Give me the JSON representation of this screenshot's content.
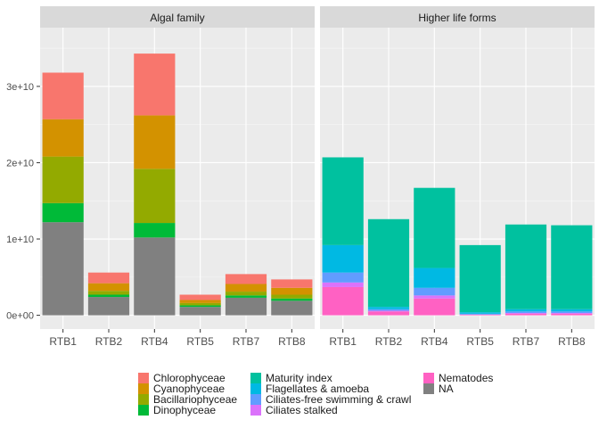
{
  "chart_data": {
    "type": "bar",
    "stacked": true,
    "facets": [
      "Algal family",
      "Higher life forms"
    ],
    "categories": [
      "RTB1",
      "RTB2",
      "RTB4",
      "RTB5",
      "RTB7",
      "RTB8"
    ],
    "y_tick_labels": [
      "0e+00",
      "1e+10",
      "2e+10",
      "3e+10"
    ],
    "y_ticks": [
      0,
      10000000000,
      20000000000,
      30000000000
    ],
    "ylim": [
      -1800000000,
      37700000000
    ],
    "grid": true,
    "legend_position": "bottom",
    "legend": [
      {
        "name": "Chlorophyceae",
        "color": "#F8766D"
      },
      {
        "name": "Cyanophyceae",
        "color": "#D39200"
      },
      {
        "name": "Bacillariophyceae",
        "color": "#93AA00"
      },
      {
        "name": "Dinophyceae",
        "color": "#00BA38"
      },
      {
        "name": "Maturity index",
        "color": "#00C19F"
      },
      {
        "name": "Flagellates & amoeba",
        "color": "#00B9E3"
      },
      {
        "name": "Ciliates-free swimming & crawl",
        "color": "#619CFF"
      },
      {
        "name": "Ciliates stalked",
        "color": "#DB72FB"
      },
      {
        "name": "Nematodes",
        "color": "#FF61C3"
      },
      {
        "name": "NA",
        "color": "#808080"
      }
    ],
    "panels": [
      {
        "facet": "Algal family",
        "stacks": [
          {
            "series": "NA",
            "values": [
              12200000000,
              2400000000,
              10200000000,
              1100000000,
              2300000000,
              1900000000
            ]
          },
          {
            "series": "Dinophyceae",
            "values": [
              2500000000,
              300000000,
              1900000000,
              200000000,
              300000000,
              300000000
            ]
          },
          {
            "series": "Bacillariophyceae",
            "values": [
              6100000000,
              500000000,
              7100000000,
              300000000,
              500000000,
              500000000
            ]
          },
          {
            "series": "Cyanophyceae",
            "values": [
              4900000000,
              1000000000,
              7000000000,
              400000000,
              1000000000,
              900000000
            ]
          },
          {
            "series": "Chlorophyceae",
            "values": [
              6100000000,
              1400000000,
              8100000000,
              700000000,
              1300000000,
              1100000000
            ]
          }
        ]
      },
      {
        "facet": "Higher life forms",
        "stacks": [
          {
            "series": "Nematodes",
            "values": [
              3700000000,
              500000000,
              2200000000,
              100000000,
              200000000,
              200000000
            ]
          },
          {
            "series": "Ciliates stalked",
            "values": [
              600000000,
              100000000,
              400000000,
              0,
              100000000,
              100000000
            ]
          },
          {
            "series": "Ciliates-free swimming & crawl",
            "values": [
              1300000000,
              200000000,
              1000000000,
              100000000,
              200000000,
              200000000
            ]
          },
          {
            "series": "Flagellates & amoeba",
            "values": [
              3600000000,
              300000000,
              2600000000,
              200000000,
              300000000,
              300000000
            ]
          },
          {
            "series": "Maturity index",
            "values": [
              11500000000,
              11500000000,
              10500000000,
              8800000000,
              11100000000,
              11000000000
            ]
          }
        ]
      }
    ]
  }
}
